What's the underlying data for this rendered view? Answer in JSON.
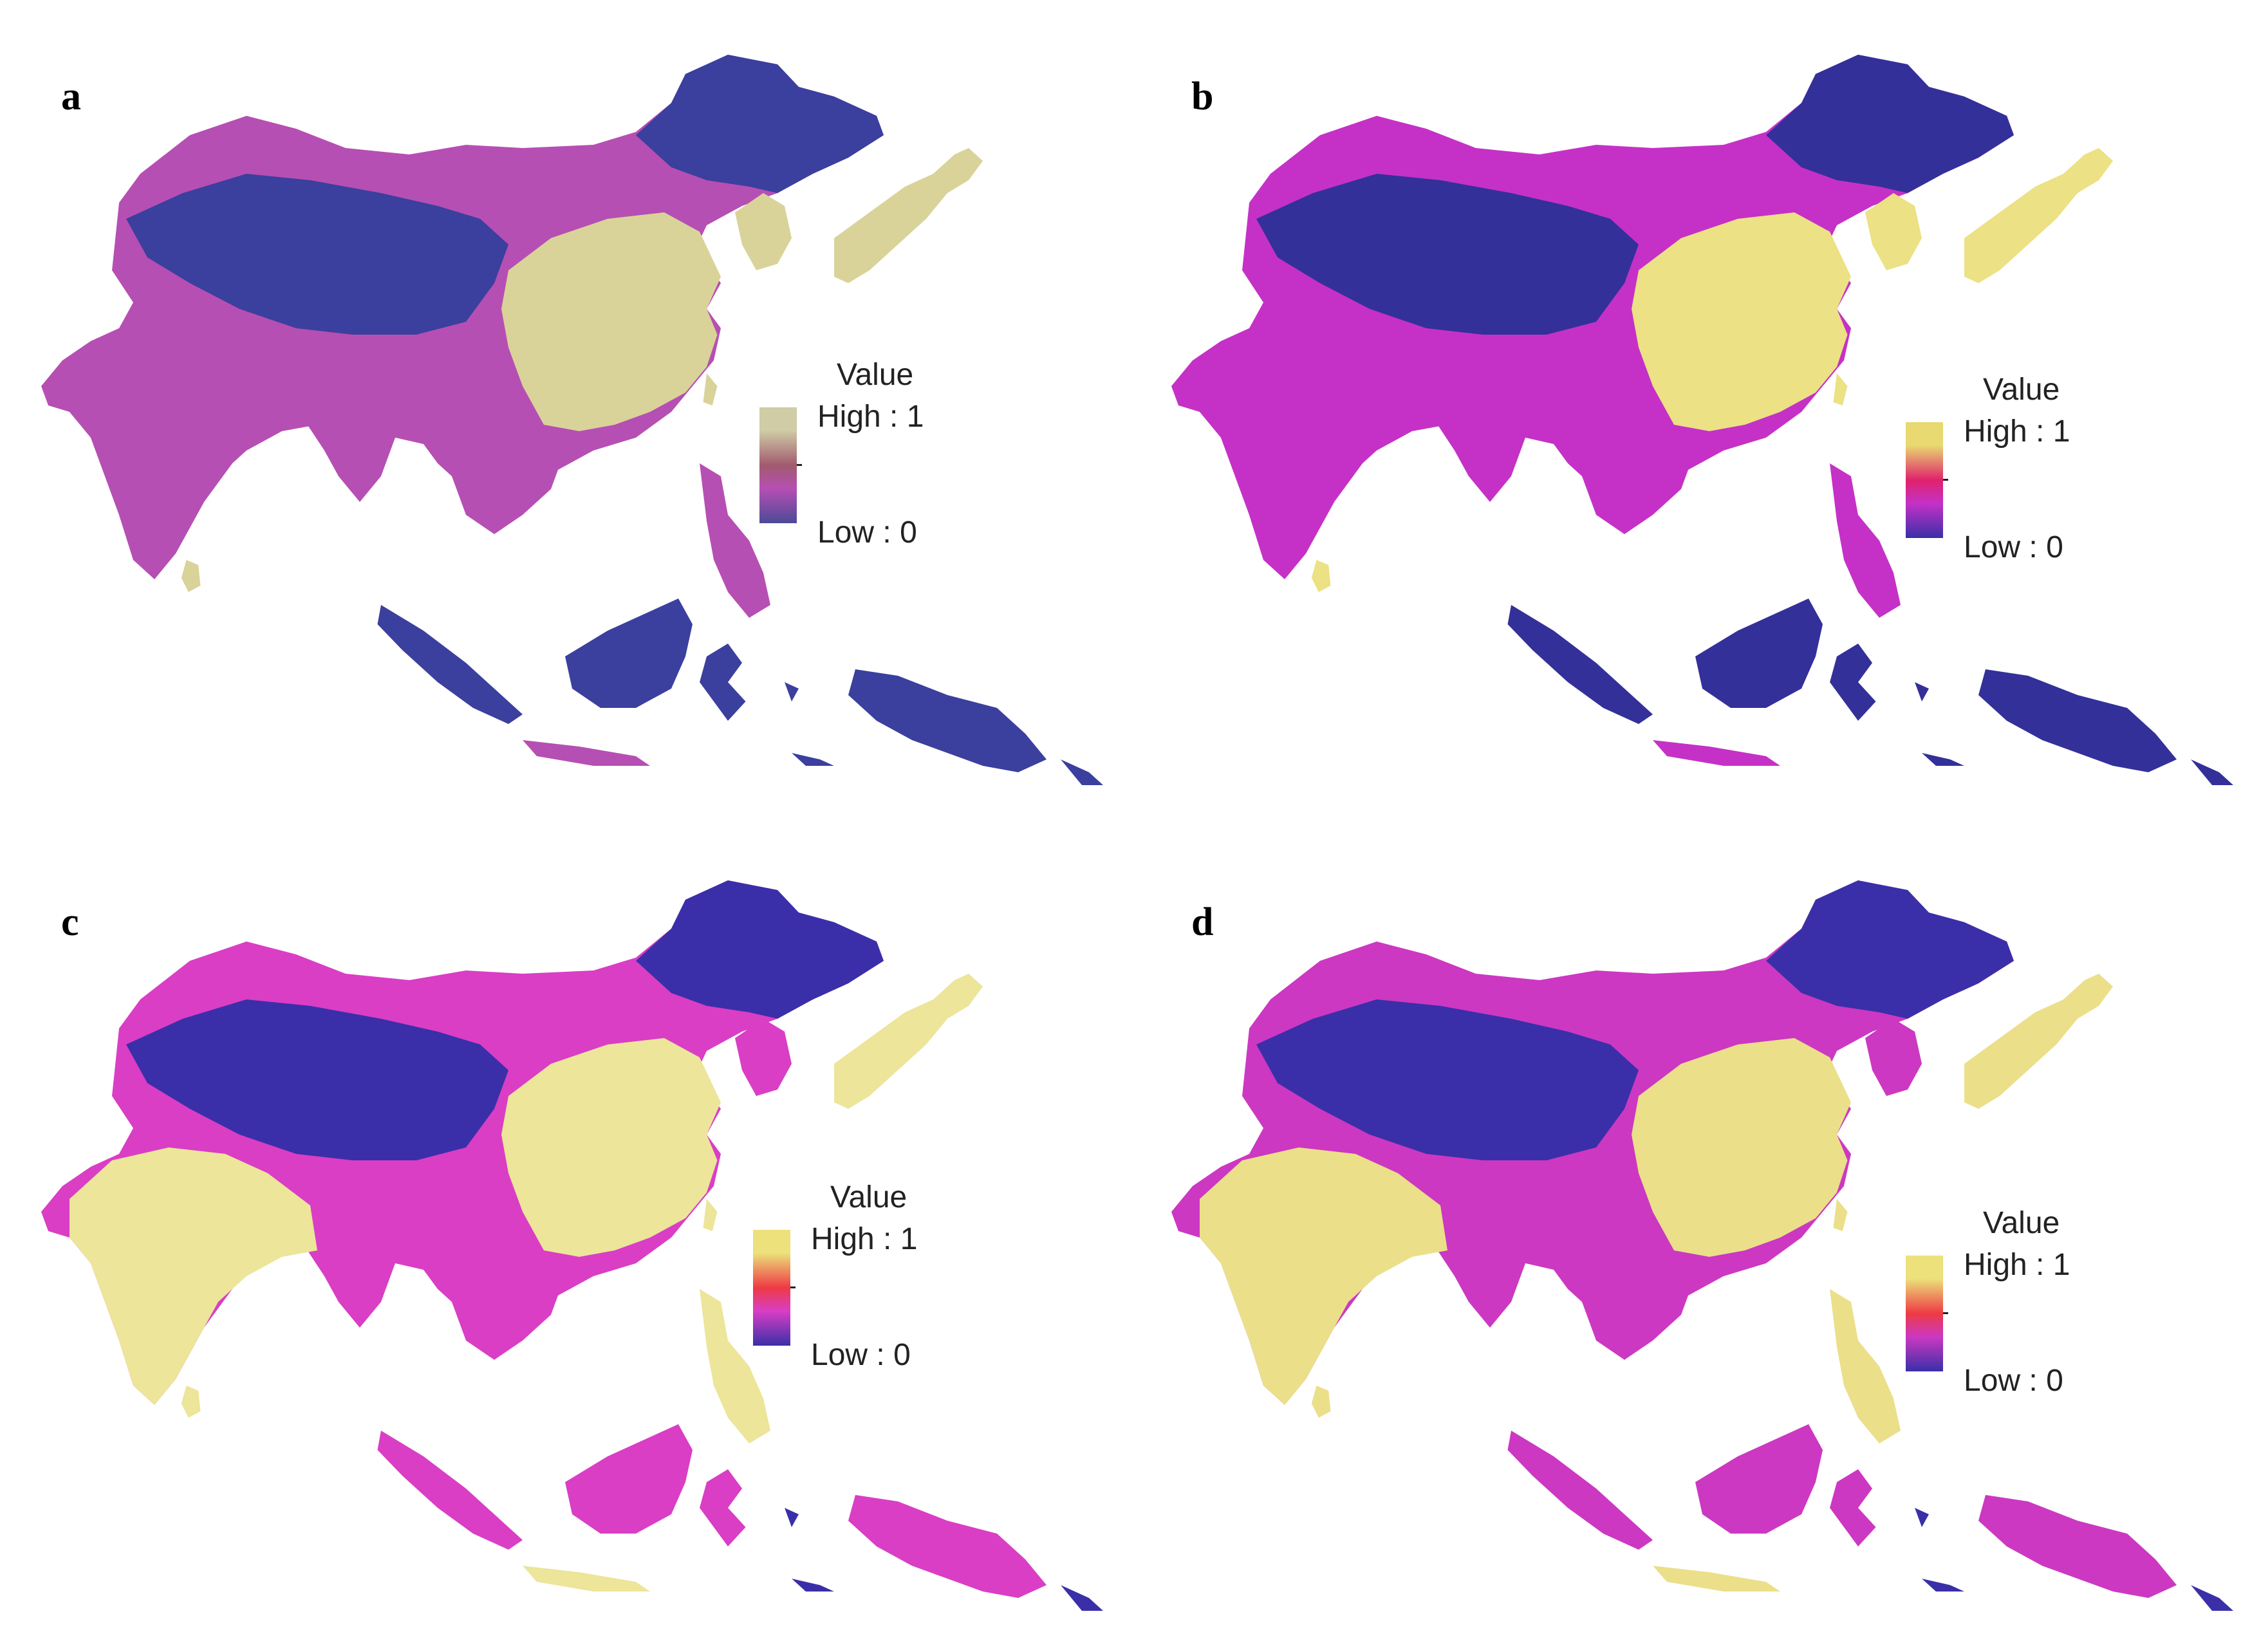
{
  "panels": [
    {
      "letter": "a",
      "legend": {
        "title": "Value",
        "high": "High : 1",
        "low": "Low : 0"
      },
      "colors": {
        "low": "#3b3f9e",
        "mid": "#b64fb3",
        "high": "#d9d39a",
        "ramp_top": "#cfcca6",
        "ramp_mid": "#a15a6e",
        "ramp_bottom": "#4b4a97"
      }
    },
    {
      "letter": "b",
      "legend": {
        "title": "Value",
        "high": "High : 1",
        "low": "Low : 0"
      },
      "colors": {
        "low": "#33309a",
        "mid": "#c531c7",
        "high": "#ece184",
        "ramp_top": "#e8d970",
        "ramp_mid": "#e0226b",
        "ramp_bottom": "#3a2fa8"
      }
    },
    {
      "letter": "c",
      "legend": {
        "title": "Value",
        "high": "High : 1",
        "low": "Low : 0"
      },
      "colors": {
        "low": "#3a2fa8",
        "mid": "#d93ec5",
        "high": "#ece59a",
        "ramp_top": "#ece17a",
        "ramp_mid": "#ee3a44",
        "ramp_bottom": "#3a2fa8"
      }
    },
    {
      "letter": "d",
      "legend": {
        "title": "Value",
        "high": "High : 1",
        "low": "Low : 0"
      },
      "colors": {
        "low": "#3a2fa8",
        "mid": "#cc38c2",
        "high": "#ebdf8a",
        "ramp_top": "#ece17a",
        "ramp_mid": "#ee3a44",
        "ramp_bottom": "#3a2fa8"
      }
    }
  ]
}
